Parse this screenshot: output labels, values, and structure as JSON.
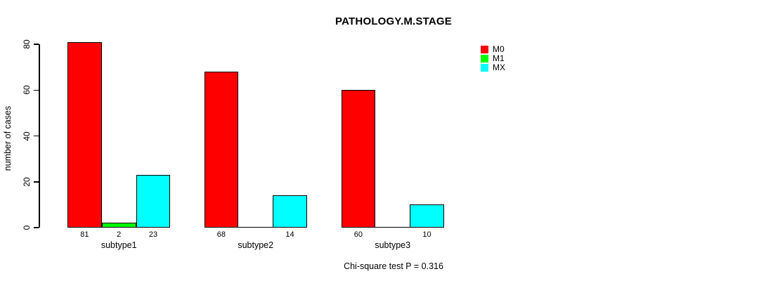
{
  "chart_data": {
    "type": "bar",
    "title": "PATHOLOGY.M.STAGE",
    "ylabel": "number of cases",
    "xlabel": "",
    "categories": [
      "subtype1",
      "subtype2",
      "subtype3"
    ],
    "series": [
      {
        "name": "M0",
        "color": "#FF0000",
        "values": [
          81,
          68,
          60
        ]
      },
      {
        "name": "M1",
        "color": "#00FF00",
        "values": [
          2,
          0,
          0
        ]
      },
      {
        "name": "MX",
        "color": "#00FFFF",
        "values": [
          23,
          14,
          10
        ]
      }
    ],
    "bar_labels": [
      [
        "81",
        "2",
        "23"
      ],
      [
        "68",
        "",
        "14"
      ],
      [
        "60",
        "",
        "10"
      ]
    ],
    "yticks": [
      0,
      20,
      40,
      60,
      80
    ],
    "ylim": [
      0,
      80
    ],
    "grid": false,
    "legend_position": "top-right",
    "annotation": "Chi-square test P = 0.316",
    "axis_color": "#000000"
  }
}
